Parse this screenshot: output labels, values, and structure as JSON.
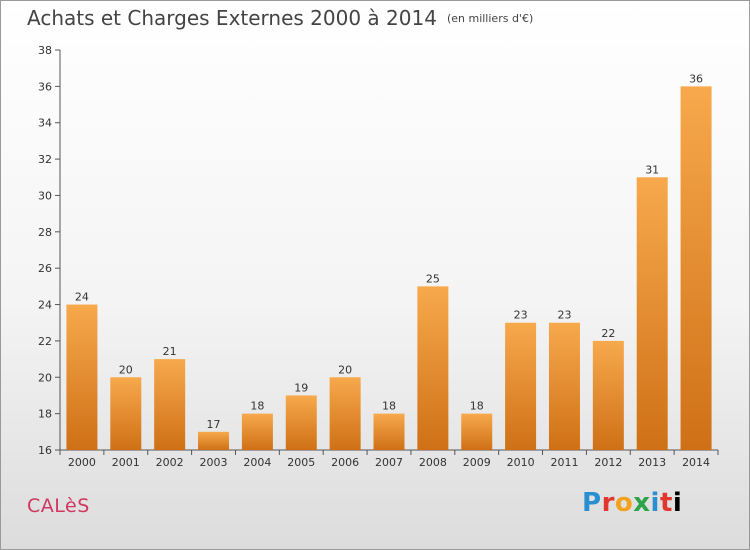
{
  "header": {
    "title": "Achats et Charges Externes 2000 à 2014",
    "unit": "(en milliers d'€)"
  },
  "footer": {
    "commune": "CALèS",
    "logo_letters": [
      "P",
      "r",
      "o",
      "x",
      "i",
      "t",
      "i"
    ]
  },
  "colors": {
    "bar_top": "#f7a94c",
    "bar_bottom": "#cf7016",
    "title": "#444444",
    "commune": "#d0375f"
  },
  "chart_data": {
    "type": "bar",
    "title": "Achats et Charges Externes 2000 à 2014",
    "subtitle": "(en milliers d'€)",
    "categories": [
      "2000",
      "2001",
      "2002",
      "2003",
      "2004",
      "2005",
      "2006",
      "2007",
      "2008",
      "2009",
      "2010",
      "2011",
      "2012",
      "2013",
      "2014"
    ],
    "values": [
      24,
      20,
      21,
      17,
      18,
      19,
      20,
      18,
      25,
      18,
      23,
      23,
      22,
      31,
      36
    ],
    "ylim": [
      16,
      38
    ],
    "yticks": [
      16,
      18,
      20,
      22,
      24,
      26,
      28,
      30,
      32,
      34,
      36,
      38
    ],
    "grid": false,
    "xlabel": "",
    "ylabel": ""
  }
}
